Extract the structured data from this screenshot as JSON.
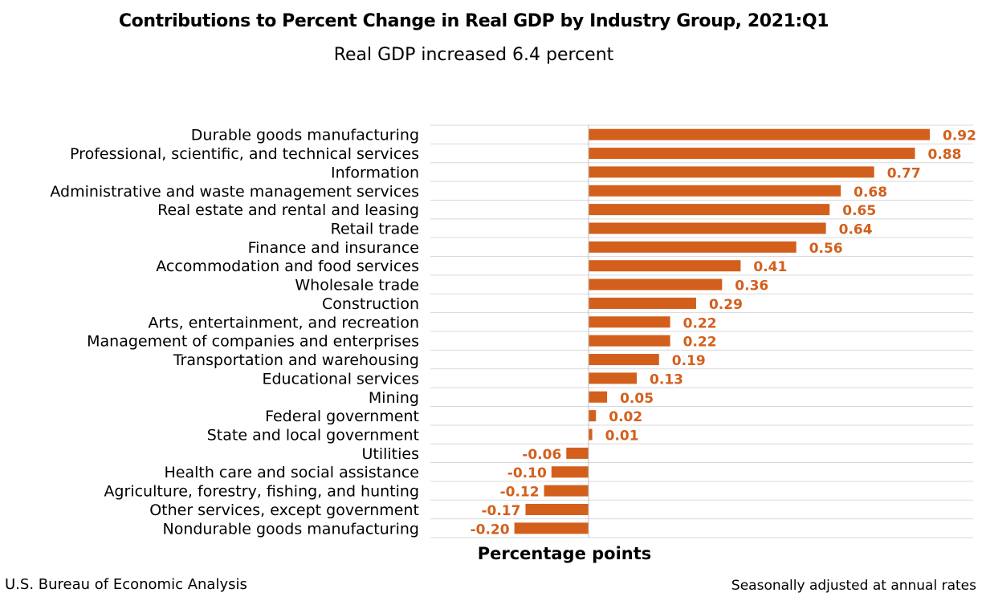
{
  "title": "Contributions to Percent Change in Real GDP by Industry Group, 2021:Q1",
  "subtitle": "Real GDP increased 6.4 percent",
  "source": "U.S. Bureau of Economic Analysis",
  "note": "Seasonally adjusted at annual rates",
  "colors": {
    "bar": "#D35F1C",
    "label": "#D35F1C",
    "grid": "#D9D9D9",
    "axis": "#BFBFBF"
  },
  "chart_data": {
    "type": "bar",
    "orientation": "horizontal",
    "title": "Contributions to Percent Change in Real GDP by Industry Group, 2021:Q1",
    "subtitle": "Real GDP increased 6.4 percent",
    "xlabel": "Percentage points",
    "categories": [
      "Durable goods manufacturing",
      "Professional, scientific, and technical services",
      "Information",
      "Administrative and waste management services",
      "Real estate and rental and leasing",
      "Retail trade",
      "Finance and insurance",
      "Accommodation and food services",
      "Wholesale trade",
      "Construction",
      "Arts, entertainment, and recreation",
      "Management of companies and enterprises",
      "Transportation and warehousing",
      "Educational services",
      "Mining",
      "Federal government",
      "State and local government",
      "Utilities",
      "Health care and social assistance",
      "Agriculture, forestry, fishing, and hunting",
      "Other services, except government",
      "Nondurable goods manufacturing"
    ],
    "values": [
      0.92,
      0.88,
      0.77,
      0.68,
      0.65,
      0.64,
      0.56,
      0.41,
      0.36,
      0.29,
      0.22,
      0.22,
      0.19,
      0.13,
      0.05,
      0.02,
      0.01,
      -0.06,
      -0.1,
      -0.12,
      -0.17,
      -0.2
    ],
    "value_labels": [
      "0.92",
      "0.88",
      "0.77",
      "0.68",
      "0.65",
      "0.64",
      "0.56",
      "0.41",
      "0.36",
      "0.29",
      "0.22",
      "0.22",
      "0.19",
      "0.13",
      "0.05",
      "0.02",
      "0.01",
      "-0.06",
      "-0.10",
      "-0.12",
      "-0.17",
      "-0.20"
    ],
    "xlim": [
      -0.2,
      0.92
    ],
    "grid": true,
    "legend": "none"
  }
}
